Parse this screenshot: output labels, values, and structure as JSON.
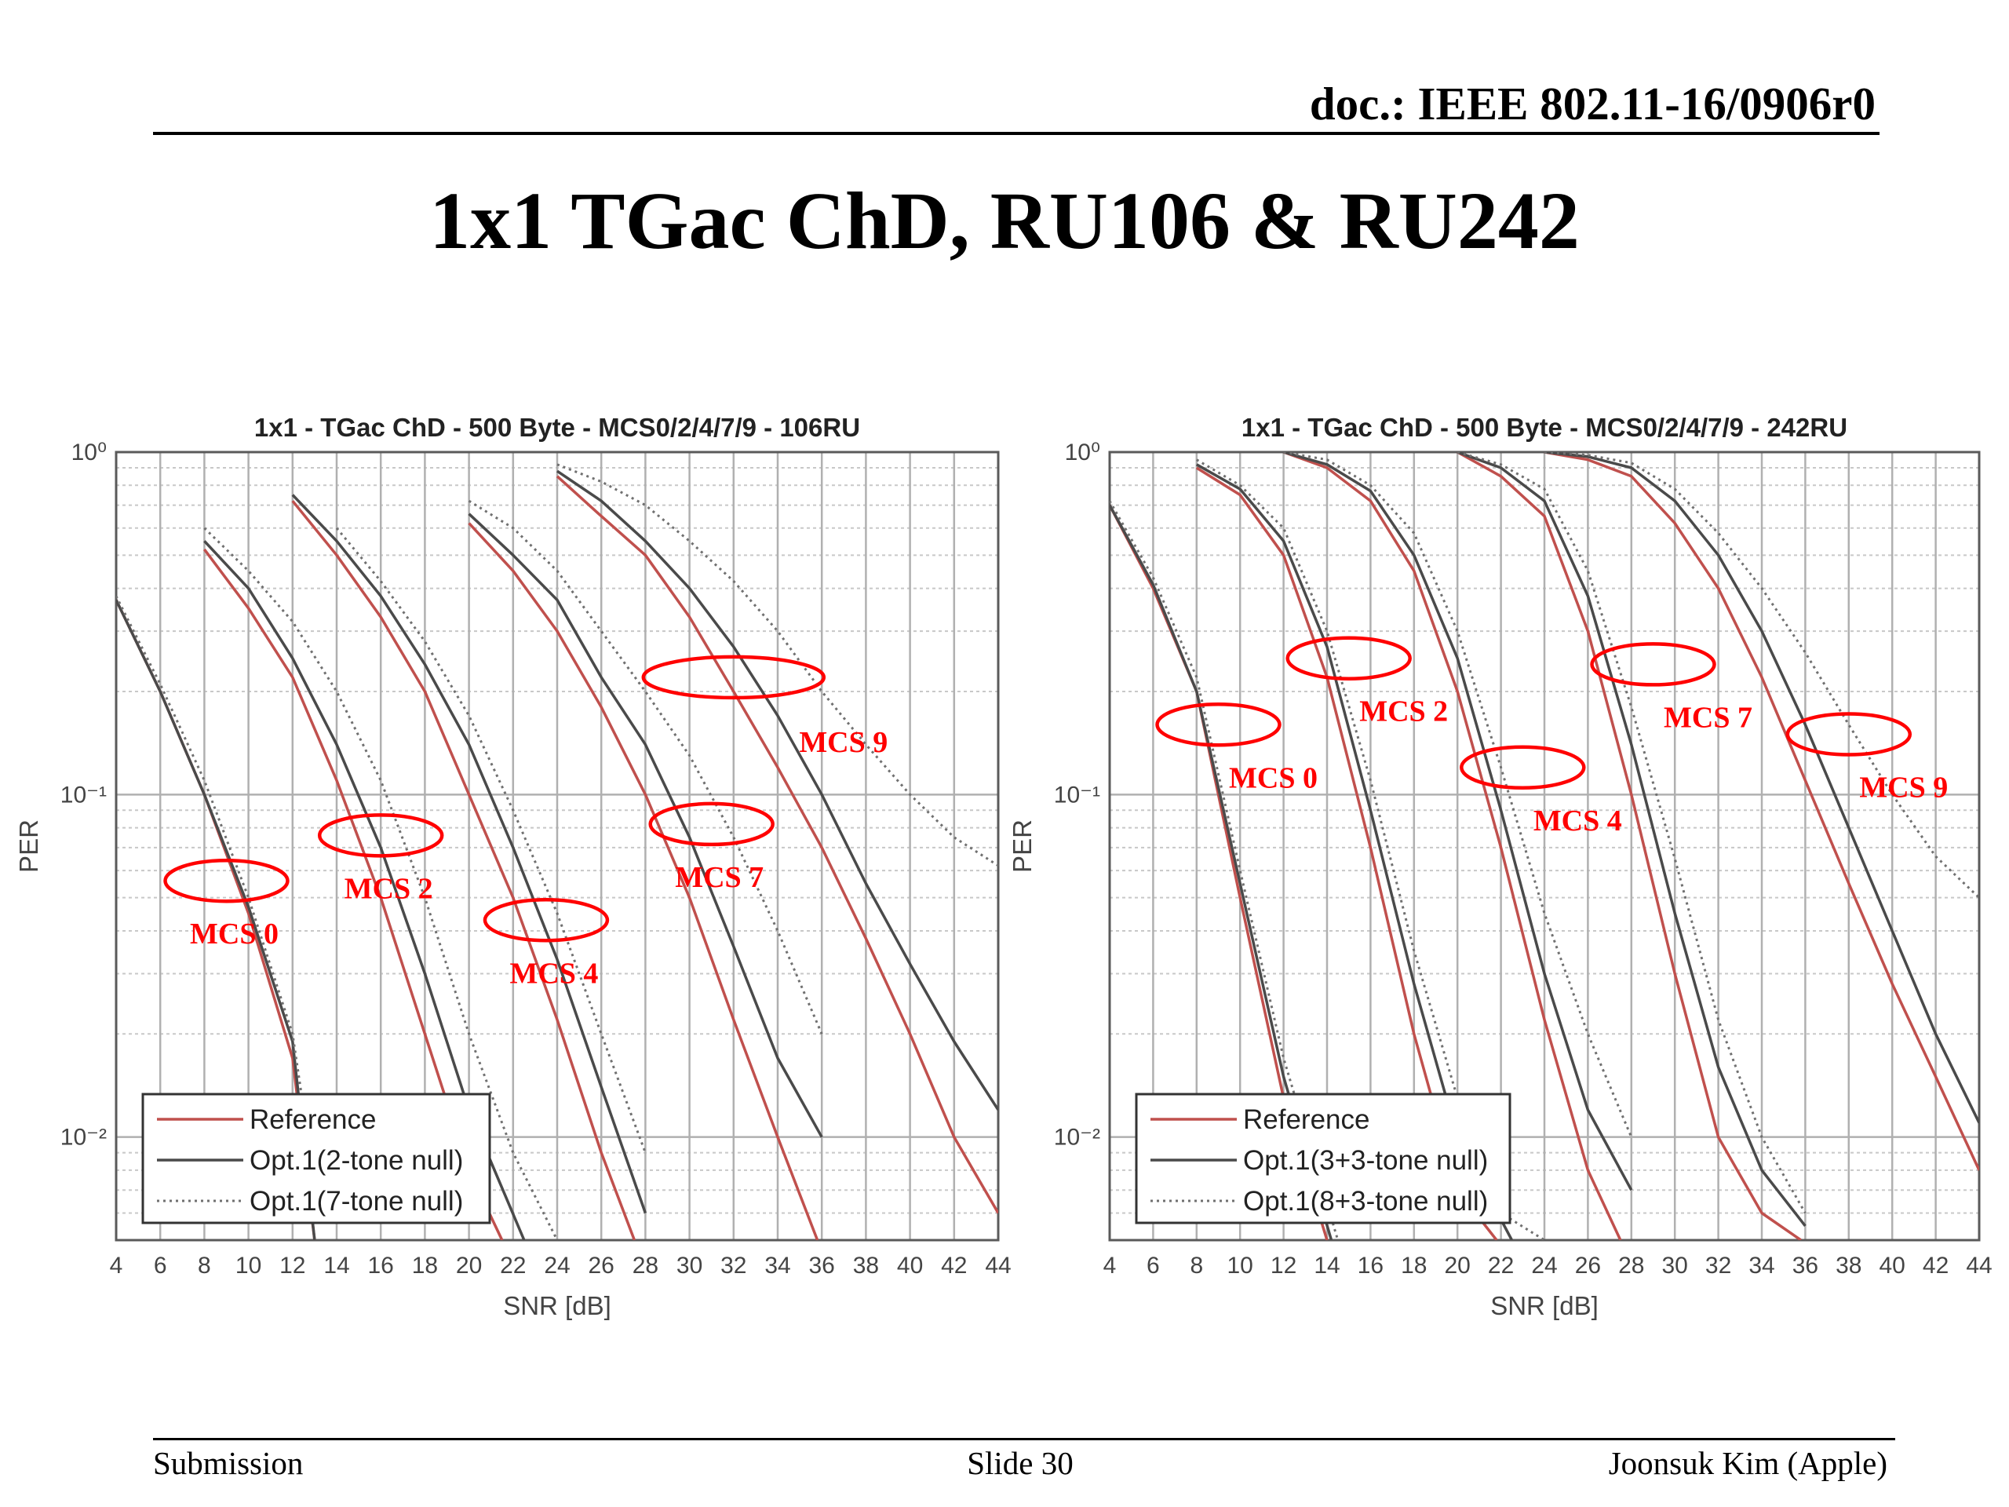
{
  "header": {
    "doc_id": "doc.: IEEE 802.11-16/0906r0"
  },
  "slide": {
    "title": "1x1 TGac ChD, RU106 & RU242"
  },
  "footer": {
    "left": "Submission",
    "center": "Slide 30",
    "right": "Joonsuk Kim (Apple)"
  },
  "colors": {
    "reference": "#c0504d",
    "opt_solid": "#4a4a4a",
    "opt_dotted": "#707070",
    "annotation": "#ff0000",
    "grid": "#b0b0b0"
  },
  "chart_data": [
    {
      "type": "line",
      "title": "1x1 - TGac ChD - 500 Byte - MCS0/2/4/7/9 - 106RU",
      "xlabel": "SNR [dB]",
      "ylabel": "PER",
      "xlim": [
        4,
        44
      ],
      "ylim": [
        0.005,
        1
      ],
      "yscale": "log",
      "xticks": [
        "4",
        "6",
        "8",
        "10",
        "12",
        "14",
        "16",
        "18",
        "20",
        "22",
        "24",
        "26",
        "28",
        "30",
        "32",
        "34",
        "36",
        "38",
        "40",
        "42",
        "44"
      ],
      "yticks": [
        "10⁰",
        "10⁻¹",
        "10⁻²"
      ],
      "grid": true,
      "legend_position": "bottom-left",
      "legend": [
        "Reference",
        "Opt.1(2-tone null)",
        "Opt.1(7-tone null)"
      ],
      "series": [
        {
          "name": "Reference",
          "group": "MCS 0",
          "style": "reference",
          "x": [
            4,
            6,
            8,
            10,
            12,
            13
          ],
          "y": [
            0.37,
            0.2,
            0.1,
            0.045,
            0.017,
            0.005
          ]
        },
        {
          "name": "Opt.1(2-tone null)",
          "group": "MCS 0",
          "style": "solid",
          "x": [
            4,
            6,
            8,
            10,
            12,
            13
          ],
          "y": [
            0.37,
            0.2,
            0.1,
            0.047,
            0.019,
            0.005
          ]
        },
        {
          "name": "Opt.1(7-tone null)",
          "group": "MCS 0",
          "style": "dotted",
          "x": [
            4,
            6,
            8,
            10,
            12,
            13.2
          ],
          "y": [
            0.38,
            0.21,
            0.11,
            0.05,
            0.02,
            0.006
          ]
        },
        {
          "name": "Reference",
          "group": "MCS 2",
          "style": "reference",
          "x": [
            8,
            10,
            12,
            14,
            16,
            18,
            20,
            21.5
          ],
          "y": [
            0.52,
            0.35,
            0.22,
            0.11,
            0.05,
            0.02,
            0.008,
            0.005
          ]
        },
        {
          "name": "Opt.1(2-tone null)",
          "group": "MCS 2",
          "style": "solid",
          "x": [
            8,
            10,
            12,
            14,
            16,
            18,
            20,
            22.5
          ],
          "y": [
            0.55,
            0.4,
            0.25,
            0.14,
            0.07,
            0.03,
            0.012,
            0.005
          ]
        },
        {
          "name": "Opt.1(7-tone null)",
          "group": "MCS 2",
          "style": "dotted",
          "x": [
            8,
            10,
            12,
            14,
            16,
            18,
            20,
            22,
            24
          ],
          "y": [
            0.6,
            0.45,
            0.32,
            0.2,
            0.11,
            0.05,
            0.02,
            0.009,
            0.005
          ]
        },
        {
          "name": "Reference",
          "group": "MCS 4",
          "style": "reference",
          "x": [
            12,
            14,
            16,
            18,
            20,
            22,
            24,
            26,
            27.5
          ],
          "y": [
            0.72,
            0.5,
            0.33,
            0.2,
            0.1,
            0.05,
            0.022,
            0.009,
            0.005
          ]
        },
        {
          "name": "Opt.1(2-tone null)",
          "group": "MCS 4",
          "style": "solid",
          "x": [
            12,
            14,
            16,
            18,
            20,
            22,
            24,
            26,
            28
          ],
          "y": [
            0.75,
            0.55,
            0.38,
            0.24,
            0.14,
            0.07,
            0.033,
            0.014,
            0.006
          ]
        },
        {
          "name": "Opt.1(7-tone null)",
          "group": "MCS 4",
          "style": "dotted",
          "x": [
            14,
            16,
            18,
            20,
            22,
            24,
            26,
            28
          ],
          "y": [
            0.6,
            0.42,
            0.28,
            0.17,
            0.09,
            0.045,
            0.02,
            0.009
          ]
        },
        {
          "name": "Reference",
          "group": "MCS 7",
          "style": "reference",
          "x": [
            20,
            22,
            24,
            26,
            28,
            30,
            32,
            34,
            35.8
          ],
          "y": [
            0.62,
            0.45,
            0.3,
            0.18,
            0.1,
            0.05,
            0.022,
            0.01,
            0.005
          ]
        },
        {
          "name": "Opt.1(2-tone null)",
          "group": "MCS 7",
          "style": "solid",
          "x": [
            20,
            22,
            24,
            26,
            28,
            30,
            32,
            34,
            36
          ],
          "y": [
            0.66,
            0.5,
            0.37,
            0.22,
            0.14,
            0.075,
            0.036,
            0.017,
            0.01
          ]
        },
        {
          "name": "Opt.1(7-tone null)",
          "group": "MCS 7",
          "style": "dotted",
          "x": [
            20,
            22,
            24,
            26,
            28,
            30,
            32,
            34,
            36
          ],
          "y": [
            0.72,
            0.6,
            0.45,
            0.3,
            0.2,
            0.13,
            0.075,
            0.04,
            0.02
          ]
        },
        {
          "name": "Reference",
          "group": "MCS 9",
          "style": "reference",
          "x": [
            24,
            26,
            28,
            30,
            32,
            34,
            36,
            38,
            40,
            42,
            44
          ],
          "y": [
            0.85,
            0.65,
            0.5,
            0.33,
            0.2,
            0.12,
            0.07,
            0.038,
            0.02,
            0.01,
            0.006
          ]
        },
        {
          "name": "Opt.1(2-tone null)",
          "group": "MCS 9",
          "style": "solid",
          "x": [
            24,
            26,
            28,
            30,
            32,
            34,
            36,
            38,
            40,
            42,
            44
          ],
          "y": [
            0.88,
            0.72,
            0.55,
            0.4,
            0.27,
            0.17,
            0.1,
            0.055,
            0.032,
            0.019,
            0.012
          ]
        },
        {
          "name": "Opt.1(7-tone null)",
          "group": "MCS 9",
          "style": "dotted",
          "x": [
            24,
            26,
            28,
            30,
            32,
            34,
            36,
            38,
            40,
            42,
            44
          ],
          "y": [
            0.92,
            0.82,
            0.7,
            0.55,
            0.42,
            0.3,
            0.2,
            0.14,
            0.1,
            0.075,
            0.062
          ]
        }
      ],
      "annotations": [
        {
          "text": "MCS 0",
          "x": 9,
          "y": 0.056
        },
        {
          "text": "MCS 2",
          "x": 16,
          "y": 0.076
        },
        {
          "text": "MCS 4",
          "x": 23.5,
          "y": 0.043
        },
        {
          "text": "MCS 7",
          "x": 31,
          "y": 0.082
        },
        {
          "text": "MCS 9",
          "x": 32,
          "y": 0.22
        }
      ]
    },
    {
      "type": "line",
      "title": "1x1 - TGac ChD - 500 Byte - MCS0/2/4/7/9 - 242RU",
      "xlabel": "SNR [dB]",
      "ylabel": "PER",
      "xlim": [
        4,
        44
      ],
      "ylim": [
        0.005,
        1
      ],
      "yscale": "log",
      "xticks": [
        "4",
        "6",
        "8",
        "10",
        "12",
        "14",
        "16",
        "18",
        "20",
        "22",
        "24",
        "26",
        "28",
        "30",
        "32",
        "34",
        "36",
        "38",
        "40",
        "42",
        "44"
      ],
      "yticks": [
        "10⁰",
        "10⁻¹",
        "10⁻²"
      ],
      "grid": true,
      "legend_position": "bottom-left",
      "legend": [
        "Reference",
        "Opt.1(3+3-tone null)",
        "Opt.1(8+3-tone null)"
      ],
      "series": [
        {
          "name": "Reference",
          "group": "MCS 0",
          "style": "reference",
          "x": [
            4,
            6,
            8,
            10,
            12,
            14
          ],
          "y": [
            0.7,
            0.4,
            0.2,
            0.05,
            0.013,
            0.005
          ]
        },
        {
          "name": "Opt.1(3+3-tone null)",
          "group": "MCS 0",
          "style": "solid",
          "x": [
            4,
            6,
            8,
            10,
            12,
            14.2
          ],
          "y": [
            0.7,
            0.41,
            0.2,
            0.055,
            0.015,
            0.005
          ]
        },
        {
          "name": "Opt.1(8+3-tone null)",
          "group": "MCS 0",
          "style": "dotted",
          "x": [
            4,
            6,
            8,
            10,
            12,
            14.5
          ],
          "y": [
            0.72,
            0.43,
            0.22,
            0.06,
            0.017,
            0.005
          ]
        },
        {
          "name": "Reference",
          "group": "MCS 2",
          "style": "reference",
          "x": [
            8,
            10,
            12,
            14,
            16,
            18,
            20,
            21.8
          ],
          "y": [
            0.9,
            0.75,
            0.5,
            0.22,
            0.07,
            0.02,
            0.007,
            0.005
          ]
        },
        {
          "name": "Opt.1(3+3-tone null)",
          "group": "MCS 2",
          "style": "solid",
          "x": [
            8,
            10,
            12,
            14,
            16,
            18,
            20,
            22.5
          ],
          "y": [
            0.92,
            0.78,
            0.55,
            0.27,
            0.09,
            0.028,
            0.01,
            0.005
          ]
        },
        {
          "name": "Opt.1(8+3-tone null)",
          "group": "MCS 2",
          "style": "dotted",
          "x": [
            8,
            10,
            12,
            14,
            16,
            18,
            20,
            22,
            24
          ],
          "y": [
            0.95,
            0.8,
            0.6,
            0.3,
            0.11,
            0.035,
            0.013,
            0.006,
            0.005
          ]
        },
        {
          "name": "Reference",
          "group": "MCS 4",
          "style": "reference",
          "x": [
            12,
            14,
            16,
            18,
            20,
            22,
            24,
            26,
            27.5
          ],
          "y": [
            1,
            0.9,
            0.72,
            0.45,
            0.2,
            0.07,
            0.022,
            0.008,
            0.005
          ]
        },
        {
          "name": "Opt.1(3+3-tone null)",
          "group": "MCS 4",
          "style": "solid",
          "x": [
            12,
            14,
            16,
            18,
            20,
            22,
            24,
            26,
            28
          ],
          "y": [
            1,
            0.92,
            0.77,
            0.5,
            0.25,
            0.09,
            0.03,
            0.012,
            0.007
          ]
        },
        {
          "name": "Opt.1(8+3-tone null)",
          "group": "MCS 4",
          "style": "dotted",
          "x": [
            12,
            14,
            16,
            18,
            20,
            22,
            24,
            26,
            28
          ],
          "y": [
            1,
            0.95,
            0.8,
            0.58,
            0.3,
            0.12,
            0.045,
            0.02,
            0.01
          ]
        },
        {
          "name": "Reference",
          "group": "MCS 7",
          "style": "reference",
          "x": [
            20,
            22,
            24,
            26,
            28,
            30,
            32,
            34,
            35.8
          ],
          "y": [
            1,
            0.85,
            0.65,
            0.3,
            0.1,
            0.03,
            0.01,
            0.006,
            0.005
          ]
        },
        {
          "name": "Opt.1(3+3-tone null)",
          "group": "MCS 7",
          "style": "solid",
          "x": [
            20,
            22,
            24,
            26,
            28,
            30,
            32,
            34,
            36
          ],
          "y": [
            1,
            0.9,
            0.72,
            0.38,
            0.14,
            0.045,
            0.016,
            0.008,
            0.0055
          ]
        },
        {
          "name": "Opt.1(8+3-tone null)",
          "group": "MCS 7",
          "style": "dotted",
          "x": [
            20,
            22,
            24,
            26,
            28,
            30,
            32,
            34,
            36
          ],
          "y": [
            1,
            0.92,
            0.78,
            0.45,
            0.18,
            0.065,
            0.022,
            0.01,
            0.006
          ]
        },
        {
          "name": "Reference",
          "group": "MCS 9",
          "style": "reference",
          "x": [
            24,
            26,
            28,
            30,
            32,
            34,
            36,
            38,
            40,
            42,
            44
          ],
          "y": [
            1,
            0.95,
            0.85,
            0.62,
            0.4,
            0.22,
            0.11,
            0.055,
            0.028,
            0.015,
            0.008
          ]
        },
        {
          "name": "Opt.1(3+3-tone null)",
          "group": "MCS 9",
          "style": "solid",
          "x": [
            24,
            26,
            28,
            30,
            32,
            34,
            36,
            38,
            40,
            42,
            44
          ],
          "y": [
            1,
            0.97,
            0.9,
            0.72,
            0.5,
            0.3,
            0.16,
            0.08,
            0.04,
            0.02,
            0.011
          ]
        },
        {
          "name": "Opt.1(8+3-tone null)",
          "group": "MCS 9",
          "style": "dotted",
          "x": [
            24,
            26,
            28,
            30,
            32,
            34,
            36,
            38,
            40,
            42,
            44
          ],
          "y": [
            1,
            0.98,
            0.93,
            0.78,
            0.58,
            0.4,
            0.26,
            0.16,
            0.1,
            0.066,
            0.05
          ]
        }
      ],
      "annotations": [
        {
          "text": "MCS 0",
          "x": 9,
          "y": 0.16
        },
        {
          "text": "MCS 2",
          "x": 15,
          "y": 0.25
        },
        {
          "text": "MCS 4",
          "x": 23,
          "y": 0.12
        },
        {
          "text": "MCS 7",
          "x": 29,
          "y": 0.24
        },
        {
          "text": "MCS 9",
          "x": 38,
          "y": 0.15
        }
      ]
    }
  ]
}
